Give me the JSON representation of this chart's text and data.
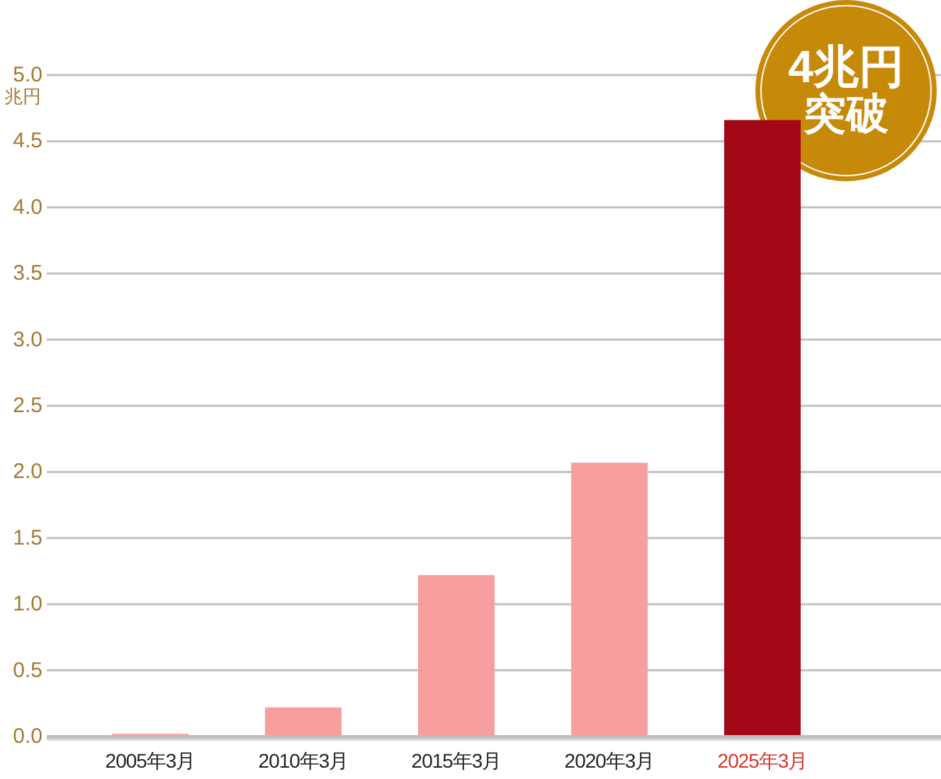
{
  "chart_data": {
    "type": "bar",
    "ylabel": "兆円",
    "categories": [
      "2005年3月",
      "2010年3月",
      "2015年3月",
      "2020年3月",
      "2025年3月"
    ],
    "values": [
      0.02,
      0.22,
      1.22,
      2.07,
      4.66
    ],
    "colors": [
      "#f79e9e",
      "#f79e9e",
      "#f79e9e",
      "#f79e9e",
      "#a20816"
    ],
    "ylim": [
      0,
      5
    ],
    "yticks": [
      {
        "value": 0,
        "label": "0.0"
      },
      {
        "value": 0.5,
        "label": "0.5"
      },
      {
        "value": 1,
        "label": "1.0"
      },
      {
        "value": 1.5,
        "label": "1.5"
      },
      {
        "value": 2,
        "label": "2.0"
      },
      {
        "value": 2.5,
        "label": "2.5"
      },
      {
        "value": 3,
        "label": "3.0"
      },
      {
        "value": 3.5,
        "label": "3.5"
      },
      {
        "value": 4,
        "label": "4.0"
      },
      {
        "value": 4.5,
        "label": "4.5"
      },
      {
        "value": 5,
        "label": "5.0"
      }
    ],
    "grid": "y",
    "annotations": [
      "4兆円",
      "突破"
    ]
  }
}
